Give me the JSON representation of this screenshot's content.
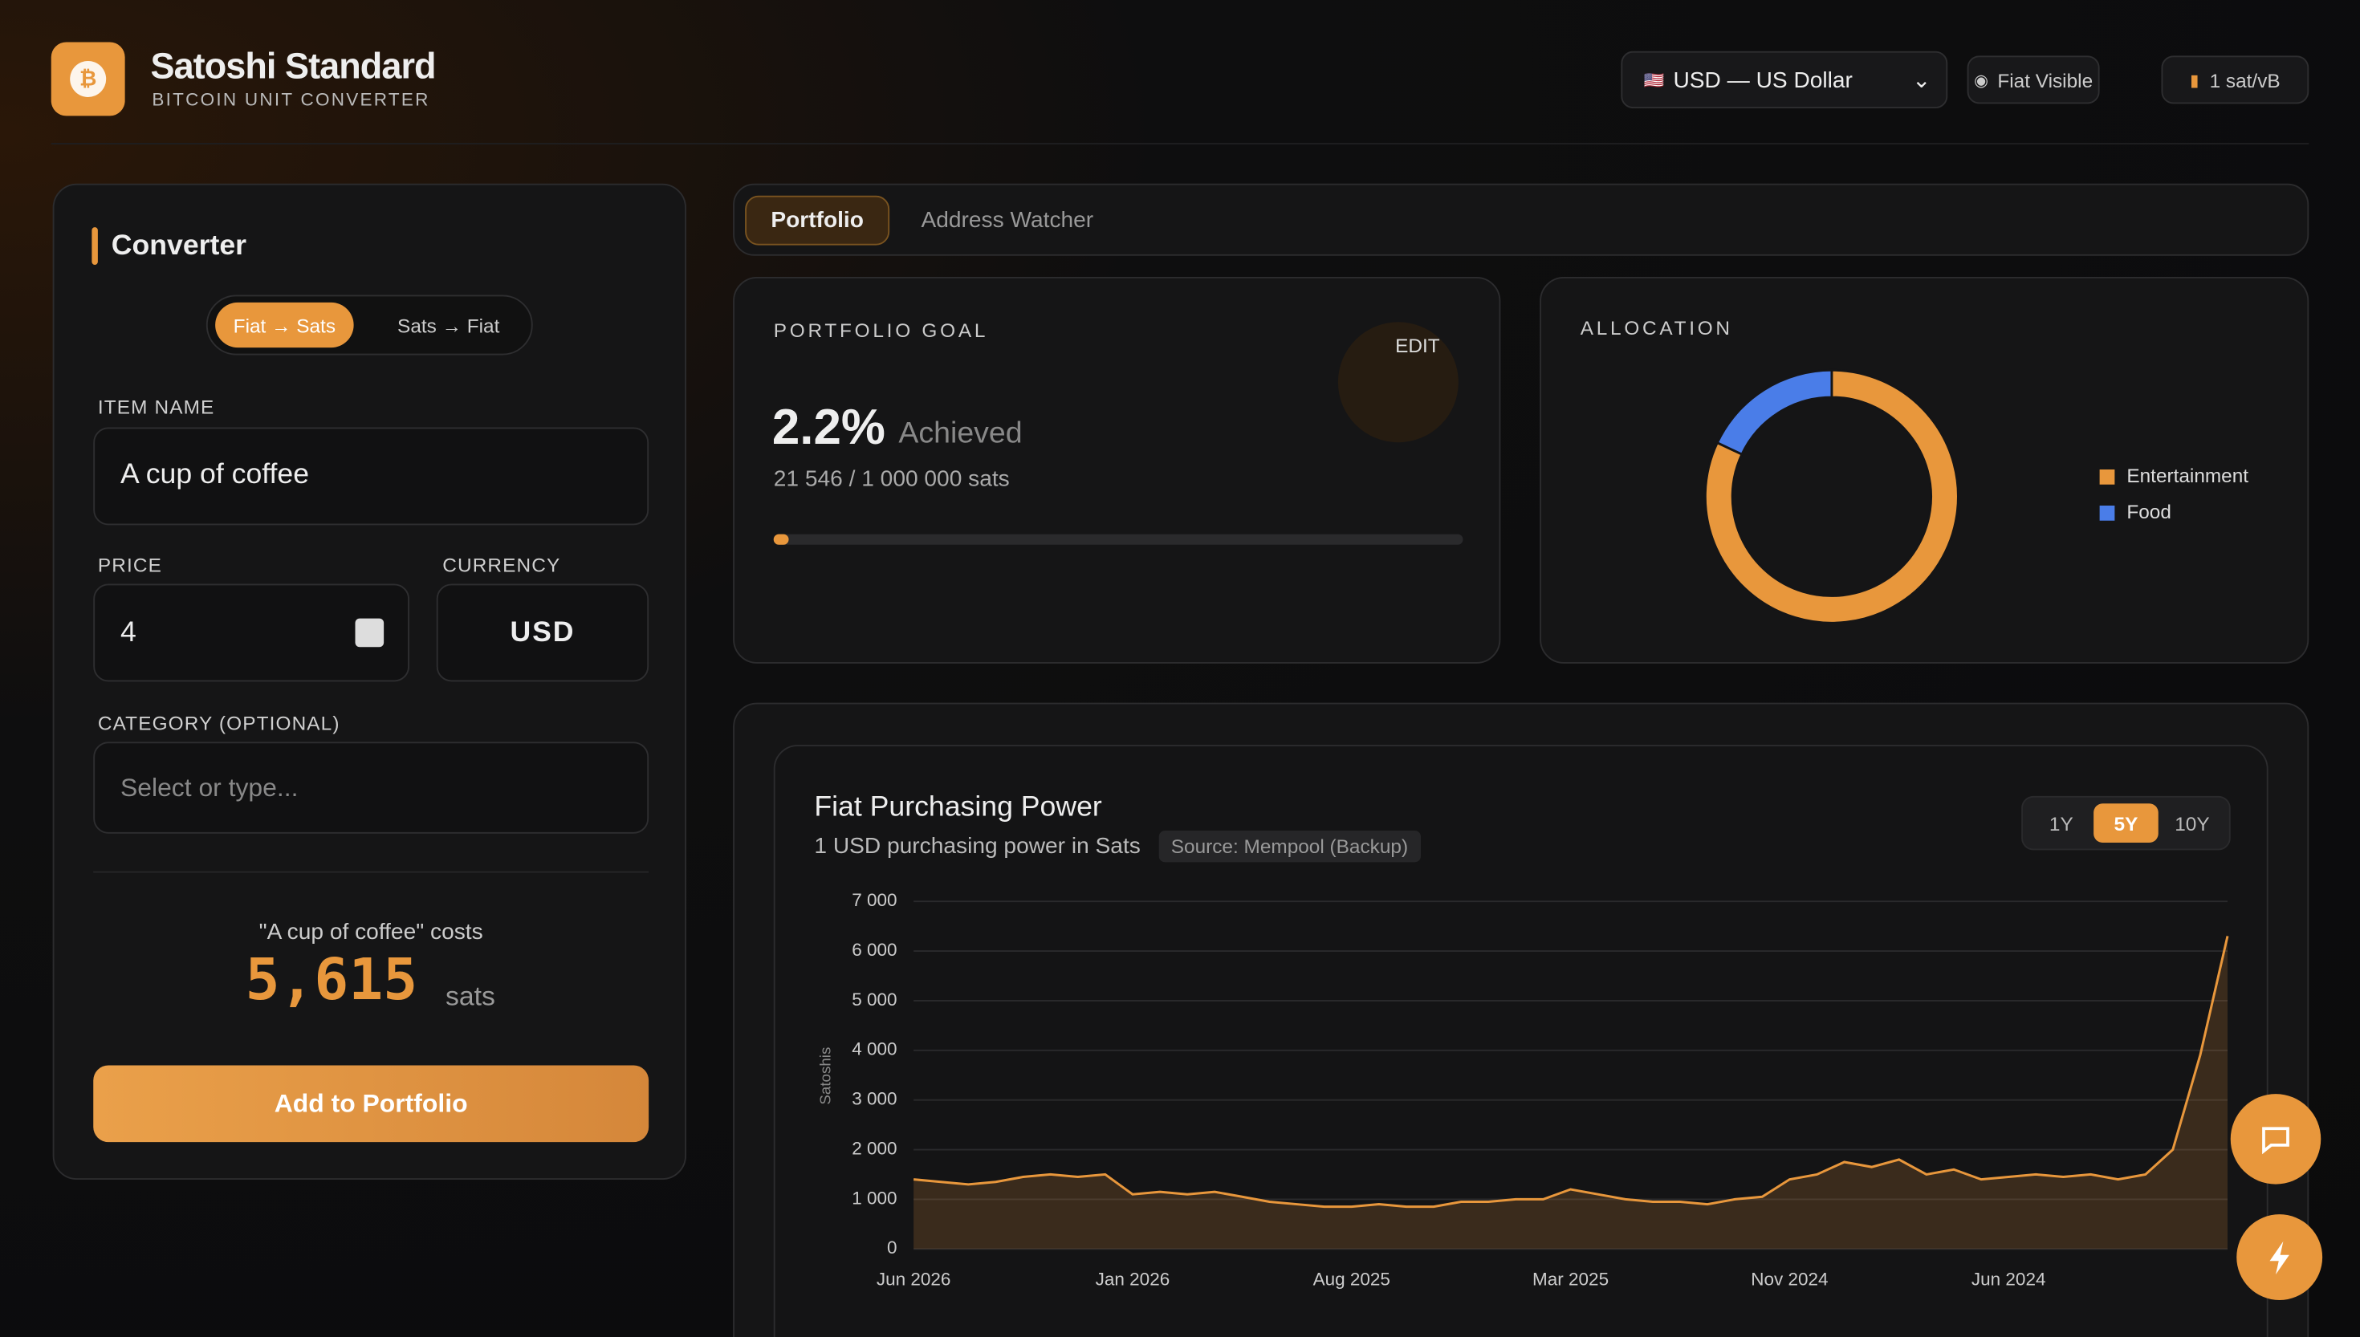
{
  "header": {
    "title": "Satoshi Standard",
    "subtitle": "BITCOIN UNIT CONVERTER",
    "currency_select": "USD — US Dollar",
    "fiat_toggle": "Fiat Visible",
    "fee": "1 sat/vB"
  },
  "converter": {
    "title": "Converter",
    "modes": [
      "Fiat → Sats",
      "Sats → Fiat"
    ],
    "item_label": "ITEM NAME",
    "item_value": "A cup of coffee",
    "price_label": "PRICE",
    "price_value": "4",
    "currency_label": "CURRENCY",
    "currency_value": "USD",
    "category_label": "CATEGORY (OPTIONAL)",
    "category_placeholder": "Select or type...",
    "result_caption": "\"A cup of coffee\" costs",
    "result_value": "5,615",
    "result_unit": "sats",
    "button": "Add to Portfolio"
  },
  "tabs": [
    "Portfolio",
    "Address Watcher"
  ],
  "portfolio_goal": {
    "title": "PORTFOLIO GOAL",
    "edit": "EDIT",
    "progress": {
      "value": 2.2,
      "label": "2.2%"
    },
    "achieved": "Achieved",
    "detail": "21 546 / 1 000 000 sats"
  },
  "chart_data": [
    {
      "type": "pie",
      "title": "ALLOCATION",
      "categories": [
        "Entertainment",
        "Food"
      ],
      "values": [
        82,
        18
      ],
      "colors": [
        "#e8973c",
        "#4a7de8"
      ]
    },
    {
      "type": "line",
      "title": "Fiat Purchasing Power",
      "subtitle": "1 USD purchasing power in Sats",
      "source": "Source: Mempool (Backup)",
      "ranges": [
        "1Y",
        "5Y",
        "10Y"
      ],
      "active_range": 1,
      "y_label": "Satoshis",
      "categories": [
        "Jun 2026",
        null,
        null,
        null,
        null,
        null,
        null,
        null,
        "Jan 2026",
        null,
        null,
        null,
        null,
        null,
        null,
        null,
        "Aug 2025",
        null,
        null,
        null,
        null,
        null,
        null,
        null,
        "Mar 2025",
        null,
        null,
        null,
        null,
        null,
        null,
        null,
        "Nov 2024",
        null,
        null,
        null,
        null,
        null,
        null,
        null,
        "Jun 2024",
        null,
        null,
        null,
        null,
        null,
        null,
        null,
        null
      ],
      "values": [
        1400,
        1350,
        1300,
        1350,
        1450,
        1500,
        1450,
        1500,
        1100,
        1150,
        1100,
        1150,
        1050,
        950,
        900,
        850,
        850,
        900,
        850,
        850,
        950,
        950,
        1000,
        1000,
        1200,
        1100,
        1000,
        950,
        950,
        900,
        1000,
        1050,
        1400,
        1500,
        1750,
        1650,
        1800,
        1500,
        1600,
        1400,
        1450,
        1500,
        1450,
        1500,
        1400,
        1500,
        2000,
        3900,
        6300
      ],
      "color": "#e8973c",
      "ylim": [
        0,
        7000
      ],
      "yticks": [
        {
          "value": 0,
          "label": "0"
        },
        {
          "value": 1000,
          "label": "1 000"
        },
        {
          "value": 2000,
          "label": "2 000"
        },
        {
          "value": 3000,
          "label": "3 000"
        },
        {
          "value": 4000,
          "label": "4 000"
        },
        {
          "value": 5000,
          "label": "5 000"
        },
        {
          "value": 6000,
          "label": "6 000"
        },
        {
          "value": 7000,
          "label": "7 000"
        }
      ],
      "grid": true
    }
  ]
}
